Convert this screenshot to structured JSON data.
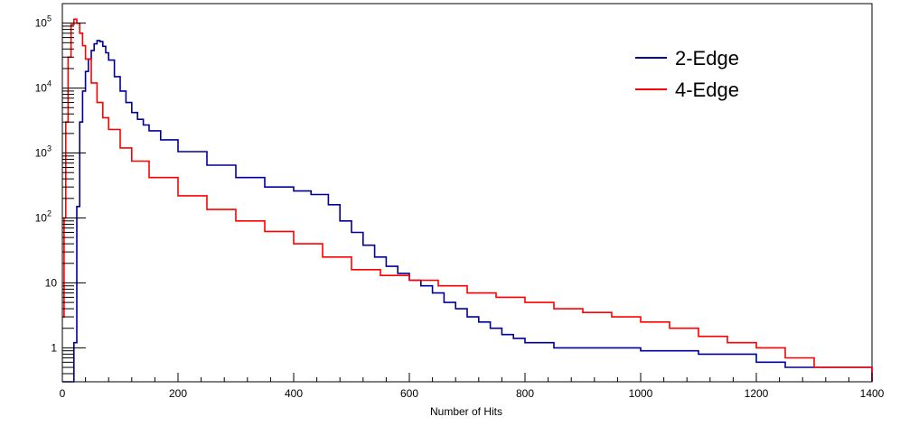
{
  "chart_data": {
    "type": "line",
    "title": "",
    "xlabel": "Number of Hits",
    "ylabel": "",
    "xlim": [
      0,
      1400
    ],
    "ylim": [
      0.3,
      200000
    ],
    "y_scale": "log",
    "grid": false,
    "legend_position": "top-right",
    "x_ticks": [
      {
        "value": 0,
        "label": "0"
      },
      {
        "value": 200,
        "label": "200"
      },
      {
        "value": 400,
        "label": "400"
      },
      {
        "value": 600,
        "label": "600"
      },
      {
        "value": 800,
        "label": "800"
      },
      {
        "value": 1000,
        "label": "1000"
      },
      {
        "value": 1200,
        "label": "1200"
      },
      {
        "value": 1400,
        "label": "1400"
      }
    ],
    "y_ticks": [
      {
        "value": 1,
        "label": "1"
      },
      {
        "value": 10,
        "label": "10"
      },
      {
        "value": 100,
        "label": "10",
        "exp": "2"
      },
      {
        "value": 1000,
        "label": "10",
        "exp": "3"
      },
      {
        "value": 10000,
        "label": "10",
        "exp": "4"
      },
      {
        "value": 100000,
        "label": "10",
        "exp": "5"
      }
    ],
    "series": [
      {
        "name": "2-Edge",
        "color": "#000099",
        "x": [
          0,
          10,
          15,
          20,
          25,
          30,
          35,
          40,
          45,
          50,
          55,
          60,
          65,
          70,
          75,
          80,
          90,
          100,
          110,
          120,
          130,
          140,
          150,
          170,
          200,
          250,
          300,
          350,
          400,
          430,
          460,
          480,
          500,
          520,
          540,
          560,
          580,
          600,
          620,
          640,
          660,
          680,
          700,
          720,
          740,
          760,
          780,
          800,
          850,
          900,
          1000,
          1100,
          1200,
          1250,
          1300,
          1390,
          1400
        ],
        "y": [
          0.3,
          0.3,
          0.3,
          1.2,
          150,
          3000,
          9000,
          18000,
          28000,
          38000,
          48000,
          54000,
          52000,
          44000,
          35000,
          27000,
          15000,
          9000,
          6000,
          4200,
          3300,
          2700,
          2200,
          1600,
          1050,
          650,
          420,
          300,
          260,
          230,
          160,
          90,
          60,
          38,
          25,
          18,
          14,
          11,
          9,
          7,
          5,
          4,
          3,
          2.5,
          2,
          1.6,
          1.4,
          1.2,
          1,
          1,
          0.9,
          0.8,
          0.6,
          0.5,
          0.5,
          0.5,
          0.3
        ]
      },
      {
        "name": "4-Edge",
        "color": "#ff0000",
        "x": [
          0,
          3,
          6,
          10,
          15,
          20,
          25,
          30,
          35,
          40,
          50,
          60,
          70,
          80,
          100,
          120,
          150,
          200,
          250,
          300,
          350,
          400,
          450,
          500,
          550,
          600,
          650,
          700,
          750,
          800,
          850,
          900,
          950,
          1000,
          1050,
          1100,
          1150,
          1200,
          1250,
          1300,
          1400
        ],
        "y": [
          3,
          100,
          3000,
          30000,
          95000,
          115000,
          100000,
          70000,
          45000,
          28000,
          12000,
          6000,
          3500,
          2300,
          1200,
          750,
          420,
          220,
          135,
          90,
          62,
          40,
          25,
          16,
          13,
          11,
          9,
          7,
          6,
          5,
          4,
          3.5,
          3,
          2.5,
          2,
          1.5,
          1.2,
          1,
          0.7,
          0.5,
          0.3
        ]
      }
    ]
  }
}
